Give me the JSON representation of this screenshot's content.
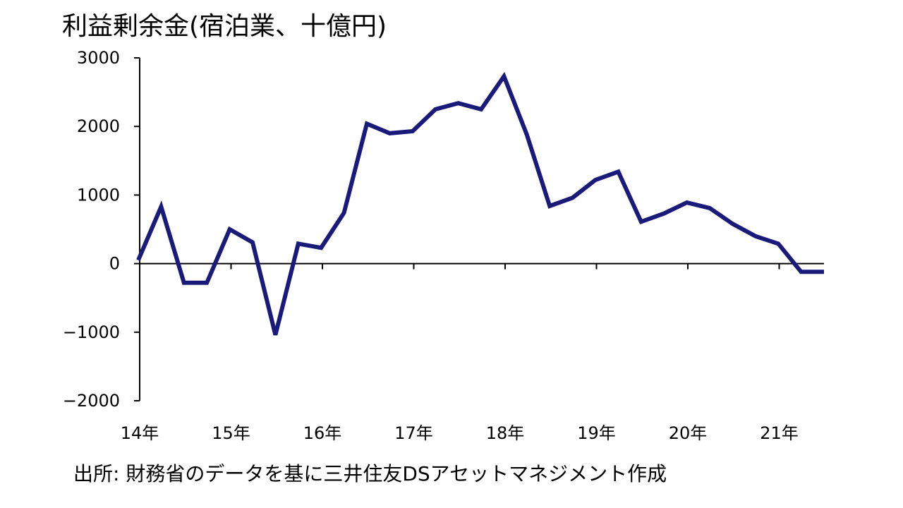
{
  "chart_data": {
    "type": "line",
    "title": "利益剰余金(宿泊業、十億円)",
    "source": "出所: 財務省のデータを基に三井住友DSアセットマネジメント作成",
    "xlabel": "",
    "ylabel": "",
    "ylim": [
      -2000,
      3000
    ],
    "yticks": [
      3000,
      2000,
      1000,
      0,
      -1000,
      -2000
    ],
    "ytick_labels": [
      "3000",
      "2000",
      "1000",
      "0",
      "−1000",
      "−2000"
    ],
    "xtick_labels": [
      "14年",
      "15年",
      "16年",
      "17年",
      "18年",
      "19年",
      "20年",
      "21年"
    ],
    "grid": false,
    "legend": "none",
    "line_color": "#1a1a7a",
    "series": [
      {
        "values": [
          50,
          830,
          -280,
          -280,
          500,
          310,
          -1040,
          290,
          230,
          740,
          2040,
          1900,
          1930,
          2250,
          2340,
          2250,
          2730,
          1880,
          840,
          960,
          1220,
          1340,
          610,
          730,
          890,
          810,
          580,
          400,
          290,
          -120,
          -120
        ]
      }
    ]
  }
}
